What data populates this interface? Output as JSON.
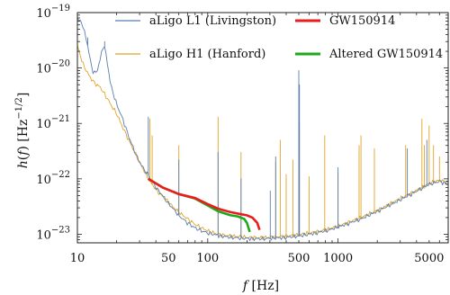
{
  "chart_data": {
    "type": "line",
    "title": "",
    "xlabel": "f [Hz]",
    "ylabel": "h(f) [Hz^-1/2]",
    "xscale": "log",
    "yscale": "log",
    "xlim": [
      10,
      7000
    ],
    "ylim": [
      7e-24,
      1e-19
    ],
    "x_ticks": [
      {
        "value": 10,
        "label": "10"
      },
      {
        "value": 50,
        "label": "50"
      },
      {
        "value": 100,
        "label": "100"
      },
      {
        "value": 500,
        "label": "500"
      },
      {
        "value": 1000,
        "label": "1000"
      },
      {
        "value": 5000,
        "label": "5000"
      }
    ],
    "y_ticks": [
      {
        "value": 1e-23,
        "mantissa": "10",
        "exponent": "−23"
      },
      {
        "value": 1e-22,
        "mantissa": "10",
        "exponent": "−22"
      },
      {
        "value": 1e-21,
        "mantissa": "10",
        "exponent": "−21"
      },
      {
        "value": 1e-20,
        "mantissa": "10",
        "exponent": "−20"
      },
      {
        "value": 1e-19,
        "mantissa": "10",
        "exponent": "−19"
      }
    ],
    "grid": false,
    "legend_position": "top",
    "series": [
      {
        "name": "aLigo L1 (Livingston)",
        "color": "#5b7db1",
        "kind": "noise",
        "x": [
          10,
          11,
          12,
          13,
          14,
          15,
          16,
          17,
          18,
          20,
          22,
          25,
          28,
          30,
          33,
          36,
          40,
          45,
          50,
          55,
          60,
          70,
          80,
          90,
          100,
          120,
          150,
          180,
          200,
          250,
          300,
          400,
          500,
          600,
          800,
          1000,
          1500,
          2000,
          3000,
          4000,
          5000,
          6000,
          7000
        ],
        "y": [
          8e-20,
          6e-20,
          2.5e-20,
          9e-21,
          8e-21,
          1.5e-20,
          2.8e-20,
          1.2e-20,
          5e-21,
          2.2e-21,
          1.3e-21,
          5.5e-22,
          2.8e-22,
          2e-22,
          1.4e-22,
          1.05e-22,
          7e-23,
          5e-23,
          3.6e-23,
          2.8e-23,
          2.2e-23,
          1.6e-23,
          1.3e-23,
          1.15e-23,
          1.05e-23,
          9.5e-24,
          8.8e-24,
          8.5e-24,
          8.4e-24,
          8.3e-24,
          8.4e-24,
          8.8e-24,
          9.3e-24,
          1e-23,
          1.15e-23,
          1.35e-23,
          1.9e-23,
          2.6e-23,
          4.2e-23,
          6e-23,
          8e-23,
          9e-23,
          8e-23
        ],
        "spikes": [
          {
            "x": 12,
            "y": 3.5e-20
          },
          {
            "x": 16.2,
            "y": 3e-20
          },
          {
            "x": 35,
            "y": 1.3e-21
          },
          {
            "x": 60,
            "y": 2.2e-22
          },
          {
            "x": 120,
            "y": 3e-22
          },
          {
            "x": 180,
            "y": 1e-22
          },
          {
            "x": 302,
            "y": 6e-23
          },
          {
            "x": 332,
            "y": 2.5e-22
          },
          {
            "x": 500,
            "y": 9e-21
          },
          {
            "x": 505,
            "y": 5e-21
          },
          {
            "x": 1000,
            "y": 1.6e-22
          },
          {
            "x": 3400,
            "y": 3.5e-22
          },
          {
            "x": 4800,
            "y": 5e-22
          }
        ]
      },
      {
        "name": "aLigo H1 (Hanford)",
        "color": "#e0a528",
        "kind": "noise",
        "x": [
          10,
          11,
          12,
          13,
          14,
          15,
          16,
          17,
          18,
          20,
          22,
          25,
          28,
          30,
          33,
          36,
          40,
          45,
          50,
          55,
          60,
          70,
          80,
          90,
          100,
          120,
          150,
          180,
          200,
          250,
          300,
          400,
          500,
          600,
          800,
          1000,
          1500,
          2000,
          3000,
          4000,
          5000,
          6000,
          7000
        ],
        "y": [
          2.5e-20,
          1.2e-20,
          8e-21,
          6e-21,
          5e-21,
          4.5e-21,
          3.5e-21,
          2.8e-21,
          2.2e-21,
          1.5e-21,
          9e-22,
          4.8e-22,
          2.8e-22,
          2e-22,
          1.3e-22,
          9e-23,
          6.5e-23,
          4.8e-23,
          3.8e-23,
          3e-23,
          2.5e-23,
          1.9e-23,
          1.5e-23,
          1.3e-23,
          1.15e-23,
          1e-23,
          9.3e-24,
          9e-24,
          8.8e-24,
          8.7e-24,
          8.8e-24,
          9.3e-24,
          9.8e-24,
          1.05e-23,
          1.2e-23,
          1.4e-23,
          2e-23,
          2.7e-23,
          4.4e-23,
          6.2e-23,
          8.2e-23,
          9.5e-23,
          8.5e-23
        ],
        "spikes": [
          {
            "x": 36,
            "y": 1.2e-21
          },
          {
            "x": 37.5,
            "y": 6e-22
          },
          {
            "x": 60,
            "y": 4e-22
          },
          {
            "x": 120,
            "y": 1.3e-21
          },
          {
            "x": 180,
            "y": 3e-22
          },
          {
            "x": 332,
            "y": 2e-22
          },
          {
            "x": 360,
            "y": 5e-22
          },
          {
            "x": 400,
            "y": 1.2e-22
          },
          {
            "x": 450,
            "y": 2.2e-22
          },
          {
            "x": 505,
            "y": 1e-21
          },
          {
            "x": 600,
            "y": 1.1e-22
          },
          {
            "x": 790,
            "y": 6e-22
          },
          {
            "x": 1000,
            "y": 1.3e-22
          },
          {
            "x": 1450,
            "y": 4e-22
          },
          {
            "x": 1500,
            "y": 6e-22
          },
          {
            "x": 1900,
            "y": 3.5e-22
          },
          {
            "x": 3300,
            "y": 4e-22
          },
          {
            "x": 4400,
            "y": 1.2e-21
          },
          {
            "x": 4600,
            "y": 4e-22
          },
          {
            "x": 5000,
            "y": 9e-22
          },
          {
            "x": 5400,
            "y": 4e-22
          },
          {
            "x": 6000,
            "y": 2.5e-22
          }
        ]
      },
      {
        "name": "GW150914",
        "color": "#e81d1d",
        "kind": "signal",
        "x": [
          35,
          45,
          60,
          80,
          100,
          120,
          150,
          180,
          200,
          220,
          240,
          250
        ],
        "y": [
          1e-22,
          7e-23,
          5.3e-23,
          4.5e-23,
          3.5e-23,
          2.9e-23,
          2.5e-23,
          2.3e-23,
          2.2e-23,
          2e-23,
          1.6e-23,
          1.2e-23
        ]
      },
      {
        "name": "Altered GW150914",
        "color": "#1da91d",
        "kind": "signal",
        "x": [
          35,
          45,
          60,
          80,
          100,
          120,
          150,
          170,
          190,
          200,
          210
        ],
        "y": [
          1e-22,
          7e-23,
          5.3e-23,
          4.4e-23,
          3.3e-23,
          2.6e-23,
          2.2e-23,
          2.1e-23,
          1.9e-23,
          1.6e-23,
          1.1e-23
        ]
      }
    ]
  }
}
